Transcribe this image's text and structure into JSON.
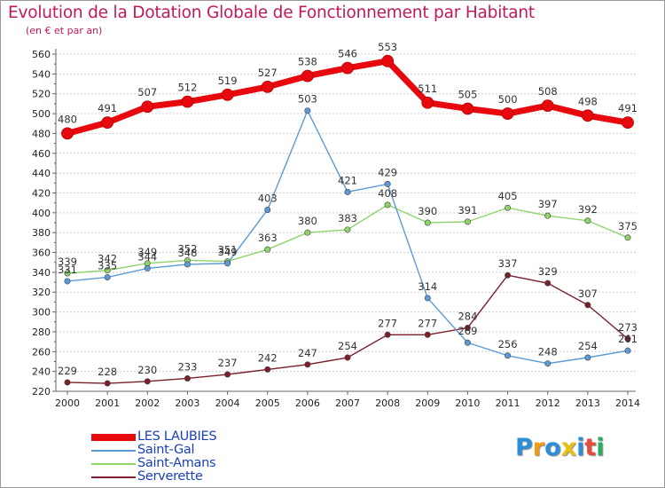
{
  "header": {
    "title": "Evolution de la Dotation Globale de Fonctionnement par Habitant",
    "subtitle": "(en € et par an)"
  },
  "chart_data": {
    "type": "line",
    "title": "Evolution de la Dotation Globale de Fonctionnement par Habitant",
    "subtitle": "(en € et par an)",
    "xlabel": "",
    "ylabel": "",
    "x": [
      "2000",
      "2001",
      "2002",
      "2003",
      "2004",
      "2005",
      "2006",
      "2007",
      "2008",
      "2009",
      "2010",
      "2011",
      "2012",
      "2013",
      "2014"
    ],
    "ylim": [
      220,
      560
    ],
    "yticks": [
      220,
      240,
      260,
      280,
      300,
      320,
      340,
      360,
      380,
      400,
      420,
      440,
      460,
      480,
      500,
      520,
      540,
      560
    ],
    "grid": "horizontal",
    "legend_position": "bottom-left",
    "series": [
      {
        "name": "LES LAUBIES",
        "color": "#e8090f",
        "values": [
          480,
          491,
          507,
          512,
          519,
          527,
          538,
          546,
          553,
          511,
          505,
          500,
          508,
          498,
          491
        ]
      },
      {
        "name": "Saint-Gal",
        "color": "#5b9bd5",
        "values": [
          331,
          335,
          344,
          348,
          349,
          403,
          503,
          421,
          429,
          314,
          269,
          256,
          248,
          254,
          261
        ]
      },
      {
        "name": "Saint-Amans",
        "color": "#8fd46a",
        "values": [
          339,
          342,
          349,
          352,
          351,
          363,
          380,
          383,
          408,
          390,
          391,
          405,
          397,
          392,
          375
        ]
      },
      {
        "name": "Serverette",
        "color": "#7a1f2b",
        "values": [
          229,
          228,
          230,
          233,
          237,
          242,
          247,
          254,
          277,
          277,
          284,
          337,
          329,
          307,
          273
        ]
      }
    ]
  },
  "logo": {
    "letters": [
      "P",
      "r",
      "o",
      "x",
      "i",
      "t",
      "i"
    ],
    "colors": [
      "#2a8fd8",
      "#f39c12",
      "#2a8fd8",
      "#e8c10f",
      "#2a8fd8",
      "#e74c3c",
      "#27ae60"
    ]
  }
}
